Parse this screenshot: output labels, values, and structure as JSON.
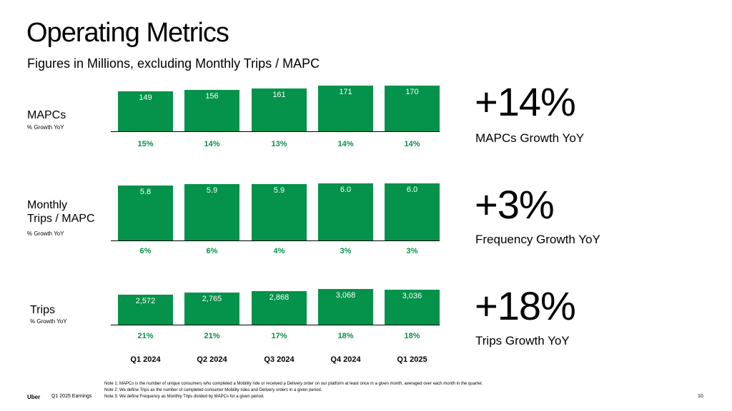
{
  "title": "Operating Metrics",
  "subtitle": "Figures in Millions, excluding Monthly Trips / MAPC",
  "chart_data": [
    {
      "type": "bar",
      "row_label": "MAPCs",
      "growth_label": "% Growth YoY",
      "categories": [
        "Q1 2024",
        "Q2 2024",
        "Q3 2024",
        "Q4 2024",
        "Q1 2025"
      ],
      "values": [
        149,
        156,
        161,
        171,
        170
      ],
      "value_labels": [
        "149",
        "156",
        "161",
        "171",
        "170"
      ],
      "growth": [
        "15%",
        "14%",
        "13%",
        "14%",
        "14%"
      ]
    },
    {
      "type": "bar",
      "row_label": "Monthly Trips / MAPC",
      "growth_label": "% Growth YoY",
      "categories": [
        "Q1 2024",
        "Q2 2024",
        "Q3 2024",
        "Q4 2024",
        "Q1 2025"
      ],
      "values": [
        5.8,
        5.9,
        5.9,
        6.0,
        6.0
      ],
      "value_labels": [
        "5.8",
        "5.9",
        "5.9",
        "6.0",
        "6.0"
      ],
      "growth": [
        "6%",
        "6%",
        "4%",
        "3%",
        "3%"
      ]
    },
    {
      "type": "bar",
      "row_label": "Trips",
      "growth_label": "% Growth YoY",
      "categories": [
        "Q1 2024",
        "Q2 2024",
        "Q3 2024",
        "Q4 2024",
        "Q1 2025"
      ],
      "values": [
        2572,
        2765,
        2868,
        3068,
        3036
      ],
      "value_labels": [
        "2,572",
        "2,765",
        "2,868",
        "3,068",
        "3,036"
      ],
      "growth": [
        "21%",
        "21%",
        "17%",
        "18%",
        "18%"
      ]
    }
  ],
  "quarters": [
    "Q1 2024",
    "Q2 2024",
    "Q3 2024",
    "Q4 2024",
    "Q1 2025"
  ],
  "row_labels": {
    "mapcs": "MAPCs",
    "trips_per_mapc_line1": "Monthly",
    "trips_per_mapc_line2": "Trips / MAPC",
    "trips": "Trips",
    "growth_yoy": "% Growth YoY"
  },
  "kpis": [
    {
      "value": "+14%",
      "label": "MAPCs Growth YoY"
    },
    {
      "value": "+3%",
      "label": "Frequency Growth YoY"
    },
    {
      "value": "+18%",
      "label": "Trips Growth YoY"
    }
  ],
  "colors": {
    "bar": "#05924a",
    "growth_text": "#05924a"
  },
  "footer": {
    "brand": "Uber",
    "doc": "Q1 2025 Earnings",
    "page": "10",
    "notes": [
      "Note 1: MAPCs is the number of unique consumers who completed a Mobility ride or received a Delivery order on our platform at least once in a given month, averaged over each month in the quarter.",
      "Note 2: We define Trips as the number of completed consumer Mobility rides and Delivery orders in a given period.",
      "Note 3: We define Frequency as Monthly Trips divided by MAPCs for a given period."
    ]
  }
}
